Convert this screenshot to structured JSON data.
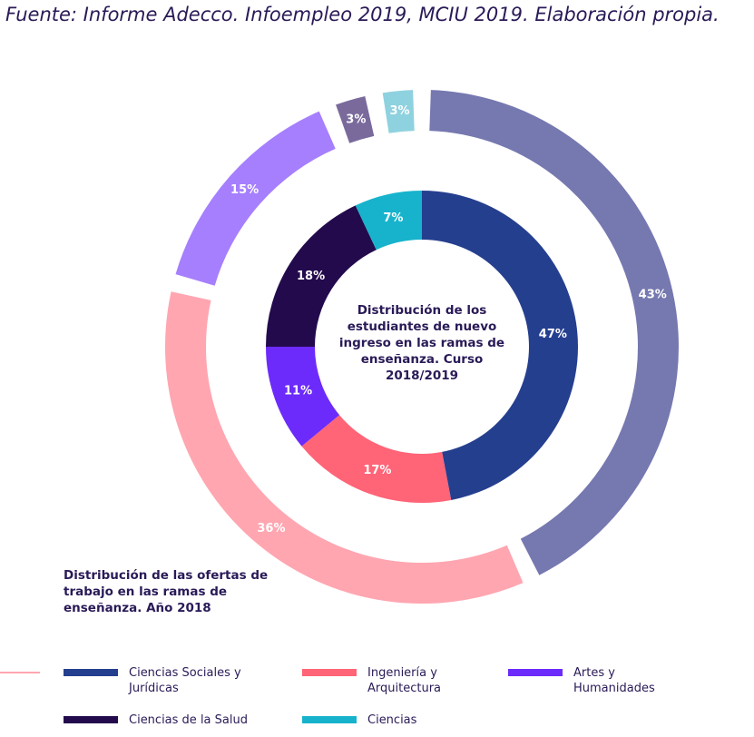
{
  "source": "Fuente: Informe Adecco. Infoempleo 2019, MCIU 2019. Elaboración propia.",
  "chart_data": [
    {
      "type": "pie",
      "title": "Distribución de los estudiantes de nuevo ingreso en las ramas de enseñanza. Curso 2018/2019",
      "series": [
        {
          "name": "Ciencias Sociales y Jurídicas",
          "value": 47,
          "label": "47%",
          "color": "#253f8f"
        },
        {
          "name": "Ingeniería y Arquitectura",
          "value": 17,
          "label": "17%",
          "color": "#ff6477"
        },
        {
          "name": "Artes y Humanidades",
          "value": 11,
          "label": "11%",
          "color": "#6c2bfa"
        },
        {
          "name": "Ciencias de la Salud",
          "value": 18,
          "label": "18%",
          "color": "#230a4d"
        },
        {
          "name": "Ciencias",
          "value": 7,
          "label": "7%",
          "color": "#17b3cc"
        }
      ]
    },
    {
      "type": "pie",
      "title": "Distribución de las ofertas de trabajo en las ramas de enseñanza. Año 2018",
      "series": [
        {
          "name": "Ciencias Sociales y Jurídicas",
          "value": 43,
          "label": "43%",
          "color": "#7678b0"
        },
        {
          "name": "Ingeniería y Arquitectura",
          "value": 36,
          "label": "36%",
          "color": "#ffa6b1"
        },
        {
          "name": "Artes y Humanidades",
          "value": 15,
          "label": "15%",
          "color": "#a67ffe"
        },
        {
          "name": "Ciencias de la Salud",
          "value": 3,
          "label": "3%",
          "color": "#7a6a9c"
        },
        {
          "name": "Ciencias",
          "value": 3,
          "label": "3%",
          "color": "#8fd2df"
        }
      ]
    }
  ],
  "legend": [
    {
      "label": "Ciencias Sociales y Jurídicas",
      "color": "#253f8f"
    },
    {
      "label": "Ingeniería y Arquitectura",
      "color": "#ff6477"
    },
    {
      "label": "Artes y Humanidades",
      "color": "#6c2bfa"
    },
    {
      "label": "Ciencias de la Salud",
      "color": "#230a4d"
    },
    {
      "label": "Ciencias",
      "color": "#17b3cc"
    }
  ]
}
